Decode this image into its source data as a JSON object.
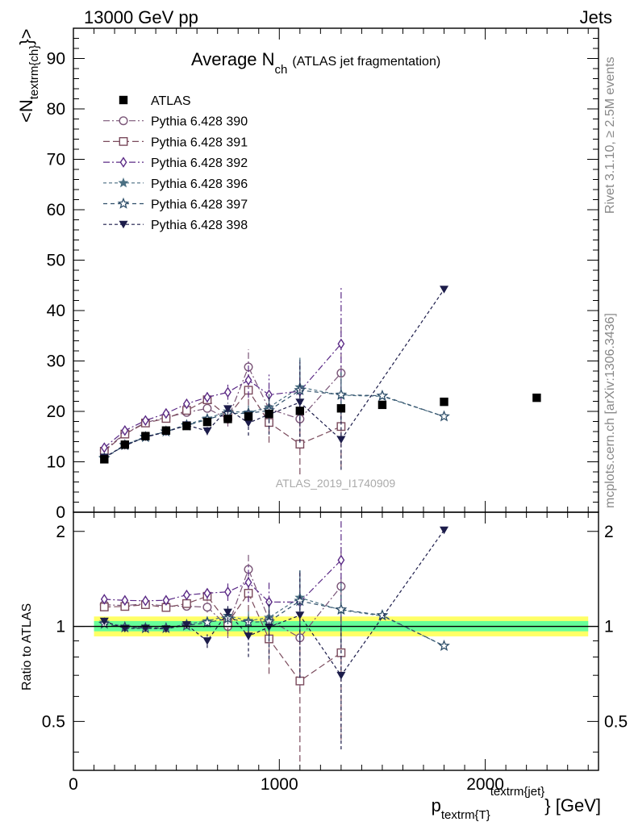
{
  "header": {
    "left_label": "13000 GeV pp",
    "right_label": "Jets"
  },
  "side_labels": {
    "rivet": "Rivet 3.1.10, ≥ 2.5M events",
    "mcplots": "mcplots.cern.ch [arXiv:1306.3436]"
  },
  "chart_data": {
    "type": "scatter",
    "title": {
      "main": "Average N",
      "sub": "ch",
      "suffix": "(ATLAS jet fragmentation)"
    },
    "watermark": "ATLAS_2019_I1740909",
    "xlabel": {
      "p": "p",
      "sub": "textrm{T}",
      "sup": "textrm{jet}",
      "unit": "} [GeV]"
    },
    "ylabel": {
      "open": "<N",
      "sub": "textrm{ch}",
      "close": "}>"
    },
    "ratio_ylabel": "Ratio to ATLAS",
    "xlim": [
      0,
      2550
    ],
    "ylim": [
      0,
      96
    ],
    "ratio_ylim": [
      0.35,
      2.3
    ],
    "ratio_scale": "log",
    "grid": false,
    "legend_position": "top-left",
    "x_ticks": [
      0,
      1000,
      2000
    ],
    "x_tick_labels": [
      "0",
      "1000",
      "2000"
    ],
    "y_ticks": [
      0,
      10,
      20,
      30,
      40,
      50,
      60,
      70,
      80,
      90
    ],
    "y_tick_labels": [
      "0",
      "10",
      "20",
      "30",
      "40",
      "50",
      "60",
      "70",
      "80",
      "90"
    ],
    "ratio_ticks": [
      0.5,
      1,
      2
    ],
    "ratio_tick_labels": [
      "0.5",
      "1",
      "2"
    ],
    "data_band_color": "#ffff66",
    "data_band_inner_color": "#66ff99",
    "reference": {
      "name": "ATLAS",
      "marker": "square",
      "color": "#000000",
      "x": [
        150,
        250,
        350,
        450,
        550,
        650,
        750,
        850,
        950,
        1100,
        1300,
        1500,
        1800,
        2250
      ],
      "y": [
        10.5,
        13.4,
        15.1,
        16.2,
        17.1,
        17.9,
        18.5,
        19.0,
        19.5,
        20.1,
        20.6,
        21.3,
        21.9,
        22.7
      ]
    },
    "series": [
      {
        "name": "Pythia 6.428 390",
        "marker": "circle",
        "color": "#7a5577",
        "dash": "8,3,2,3",
        "x": [
          150,
          250,
          350,
          450,
          550,
          650,
          750,
          850,
          950,
          1100,
          1300
        ],
        "y": [
          12.3,
          15.6,
          17.8,
          18.8,
          19.8,
          20.6,
          18.5,
          28.8,
          20.5,
          18.5,
          27.6
        ],
        "yerr": [
          0.3,
          0.3,
          0.3,
          0.4,
          0.5,
          0.8,
          1.5,
          3.5,
          3.0,
          6.0,
          10.0
        ]
      },
      {
        "name": "Pythia 6.428 391",
        "marker": "square-open",
        "color": "#7a4a5c",
        "dash": "8,4",
        "x": [
          150,
          250,
          350,
          450,
          550,
          650,
          750,
          850,
          950,
          1100,
          1300
        ],
        "y": [
          12.1,
          15.5,
          17.7,
          18.6,
          20.2,
          22.3,
          19.0,
          24.2,
          17.8,
          13.5,
          17.0
        ],
        "yerr": [
          0.3,
          0.3,
          0.3,
          0.4,
          0.5,
          0.8,
          1.5,
          3.0,
          4.0,
          6.0,
          8.0
        ]
      },
      {
        "name": "Pythia 6.428 392",
        "marker": "diamond",
        "color": "#5b2a86",
        "dash": "8,3,2,3",
        "x": [
          150,
          250,
          350,
          450,
          550,
          650,
          750,
          850,
          950,
          1100,
          1300
        ],
        "y": [
          12.8,
          16.2,
          18.2,
          19.6,
          21.5,
          22.8,
          23.8,
          26.2,
          23.3,
          24.0,
          33.4
        ],
        "yerr": [
          0.3,
          0.3,
          0.3,
          0.4,
          0.6,
          1.0,
          1.5,
          3.5,
          4.0,
          6.0,
          11.5
        ]
      },
      {
        "name": "Pythia 6.428 396",
        "marker": "star-filled",
        "color": "#4a6f82",
        "dash": "4,3",
        "x": [
          150,
          250,
          350,
          450,
          550,
          650,
          750,
          850,
          950,
          1100,
          1300,
          1500,
          1800
        ],
        "y": [
          10.8,
          13.4,
          15.0,
          16.0,
          17.4,
          18.6,
          20.0,
          19.8,
          20.8,
          24.8,
          23.2,
          23.0,
          19.0
        ],
        "yerr": [
          0.3,
          0.3,
          0.3,
          0.4,
          0.5,
          0.6,
          0.8,
          1.5,
          2.5,
          6.0,
          5.0,
          0.3,
          0.3
        ]
      },
      {
        "name": "Pythia 6.428 397",
        "marker": "star-open",
        "color": "#2f4f6a",
        "dash": "5,4",
        "x": [
          150,
          250,
          350,
          450,
          550,
          650,
          750,
          850,
          950,
          1100,
          1300,
          1500,
          1800
        ],
        "y": [
          10.7,
          13.3,
          14.9,
          16.0,
          17.2,
          18.4,
          19.6,
          19.6,
          20.2,
          24.2,
          23.3,
          23.1,
          19.0
        ],
        "yerr": [
          0.3,
          0.3,
          0.3,
          0.4,
          0.5,
          0.6,
          0.8,
          1.5,
          2.5,
          6.0,
          5.0,
          0.3,
          0.3
        ]
      },
      {
        "name": "Pythia 6.428 398",
        "marker": "triangle-down",
        "color": "#1c1c4a",
        "dash": "4,3",
        "x": [
          150,
          250,
          350,
          450,
          550,
          650,
          750,
          850,
          950,
          1100,
          1300,
          1800
        ],
        "y": [
          10.9,
          13.2,
          14.9,
          15.9,
          17.3,
          16.1,
          20.5,
          17.7,
          19.4,
          21.8,
          14.4,
          44.2
        ],
        "yerr": [
          0.3,
          0.3,
          0.3,
          0.4,
          0.5,
          0.8,
          1.2,
          2.5,
          4.0,
          8.0,
          6.0,
          0.3
        ]
      }
    ]
  }
}
